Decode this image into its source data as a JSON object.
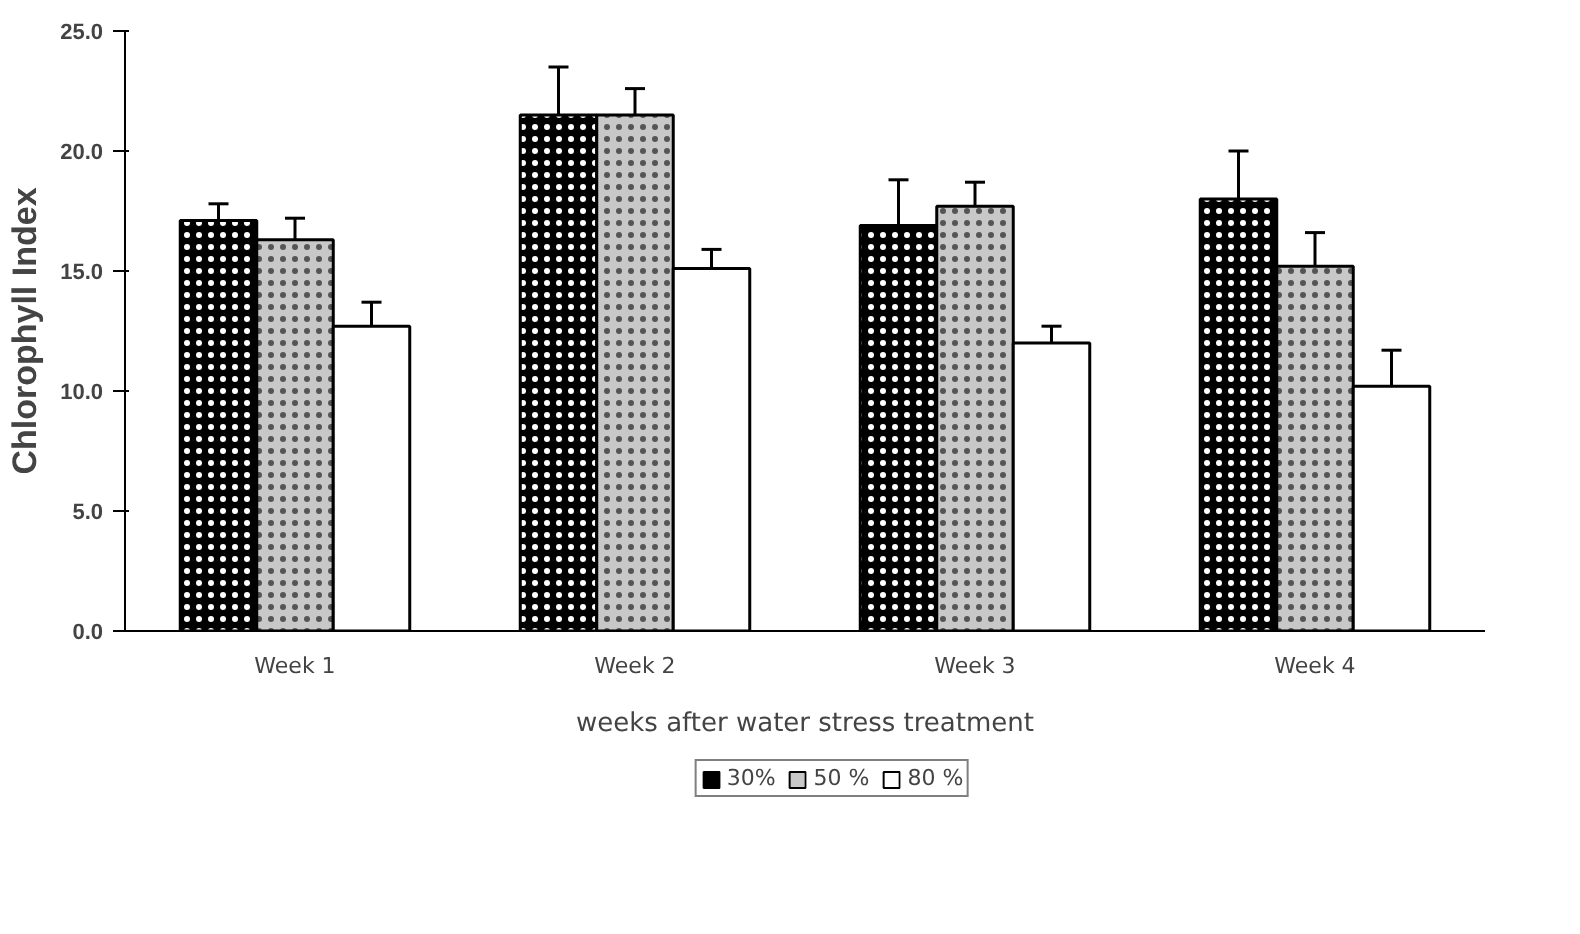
{
  "chart_data": {
    "type": "bar",
    "xlabel": "weeks after water stress treatment",
    "ylabel": "Chlorophyll Index",
    "categories": [
      "Week 1",
      "Week 2",
      "Week 3",
      "Week 4"
    ],
    "series": [
      {
        "name": "30%",
        "color": "#000000",
        "values": [
          17.1,
          21.5,
          16.9,
          18.0
        ],
        "errors": [
          0.7,
          2.0,
          1.9,
          2.0
        ]
      },
      {
        "name": "50 %",
        "color": "#c8c8c8",
        "values": [
          16.3,
          21.5,
          17.7,
          15.2
        ],
        "errors": [
          0.9,
          1.1,
          1.0,
          1.4
        ]
      },
      {
        "name": "80 %",
        "color": "#ffffff",
        "values": [
          12.7,
          15.1,
          12.0,
          10.2
        ],
        "errors": [
          1.0,
          0.8,
          0.7,
          1.5
        ]
      }
    ],
    "ylim": [
      0,
      25
    ],
    "yticks": [
      {
        "value": 0,
        "label": "0.0"
      },
      {
        "value": 5,
        "label": "5.0"
      },
      {
        "value": 10,
        "label": "10.0"
      },
      {
        "value": 15,
        "label": "15.0"
      },
      {
        "value": 20,
        "label": "20.0"
      },
      {
        "value": 25,
        "label": "25.0"
      }
    ],
    "grid": false,
    "legend": "bottom"
  }
}
